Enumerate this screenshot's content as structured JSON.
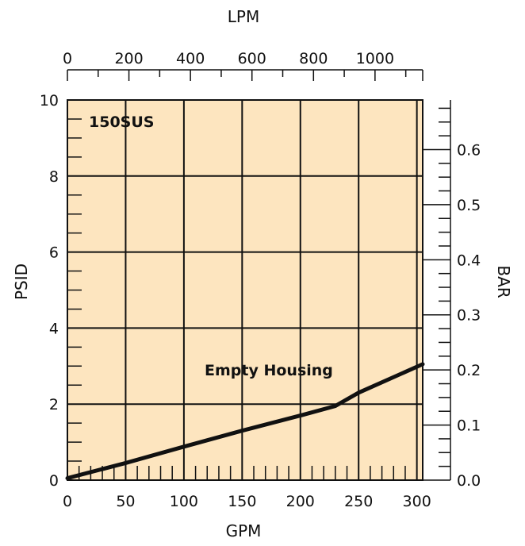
{
  "chart_data": {
    "type": "line",
    "title": "",
    "annotation": "150SUS",
    "bottom_axis": {
      "label": "GPM",
      "ticks": [
        "0",
        "50",
        "100",
        "150",
        "200",
        "250",
        "300"
      ],
      "range": [
        0,
        305
      ]
    },
    "top_axis": {
      "label": "LPM",
      "ticks": [
        "0",
        "200",
        "400",
        "600",
        "800",
        "1000"
      ],
      "range": [
        0,
        1155
      ]
    },
    "left_axis": {
      "label": "PSID",
      "ticks": [
        "0",
        "2",
        "4",
        "6",
        "8",
        "10"
      ],
      "range": [
        0,
        10
      ]
    },
    "right_axis": {
      "label": "BAR",
      "ticks": [
        "0.0",
        "0.1",
        "0.2",
        "0.3",
        "0.4",
        "0.5",
        "0.6"
      ],
      "range": [
        0,
        0.69
      ]
    },
    "grid": true,
    "plot_background": "#fde5bf",
    "line_color": "#111111",
    "series": [
      {
        "name": "Empty Housing",
        "x": [
          0,
          50,
          100,
          150,
          200,
          230,
          250,
          305
        ],
        "y": [
          0.05,
          0.45,
          0.88,
          1.3,
          1.7,
          1.95,
          2.3,
          3.05
        ]
      }
    ]
  }
}
